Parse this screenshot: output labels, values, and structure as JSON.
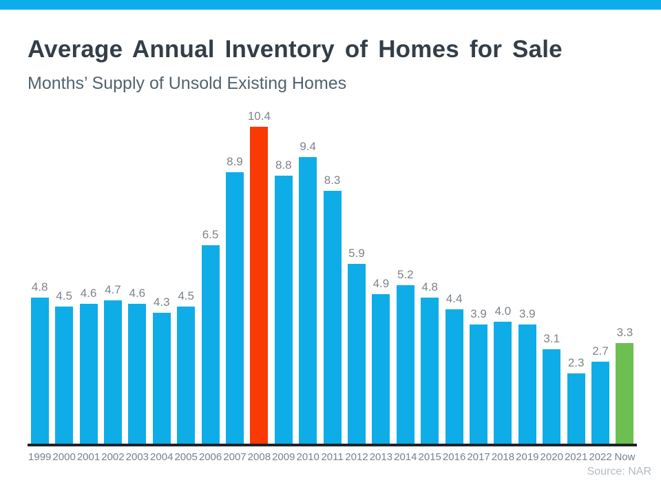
{
  "page": {
    "top_accent_color": "#0fade8"
  },
  "header": {
    "title": "Average Annual Inventory of Homes for Sale",
    "subtitle": "Months’ Supply of Unsold Existing Homes"
  },
  "chart_data": {
    "type": "bar",
    "title": "Average Annual Inventory of Homes for Sale",
    "subtitle": "Months’ Supply of Unsold Existing Homes",
    "xlabel": "",
    "ylabel": "Months' Supply",
    "ylim": [
      0,
      10.4
    ],
    "grid": false,
    "legend": false,
    "categories": [
      "1999",
      "2000",
      "2001",
      "2002",
      "2003",
      "2004",
      "2005",
      "2006",
      "2007",
      "2008",
      "2009",
      "2010",
      "2011",
      "2012",
      "2013",
      "2014",
      "2015",
      "2016",
      "2017",
      "2018",
      "2019",
      "2020",
      "2021",
      "2022",
      "Now"
    ],
    "values": [
      4.8,
      4.5,
      4.6,
      4.7,
      4.6,
      4.3,
      4.5,
      6.5,
      8.9,
      10.4,
      8.8,
      9.4,
      8.3,
      5.9,
      4.9,
      5.2,
      4.8,
      4.4,
      3.9,
      4.0,
      3.9,
      3.1,
      2.3,
      2.7,
      3.3
    ],
    "labels": [
      "4.8",
      "4.5",
      "4.6",
      "4.7",
      "4.6",
      "4.3",
      "4.5",
      "6.5",
      "8.9",
      "10.4",
      "8.8",
      "9.4",
      "8.3",
      "5.9",
      "4.9",
      "5.2",
      "4.8",
      "4.4",
      "3.9",
      "4.0",
      "3.9",
      "3.1",
      "2.3",
      "2.7",
      "3.3"
    ],
    "colors": [
      "blue",
      "blue",
      "blue",
      "blue",
      "blue",
      "blue",
      "blue",
      "blue",
      "blue",
      "red",
      "blue",
      "blue",
      "blue",
      "blue",
      "blue",
      "blue",
      "blue",
      "blue",
      "blue",
      "blue",
      "blue",
      "blue",
      "blue",
      "blue",
      "green"
    ],
    "palette": {
      "blue": "#0fade8",
      "red": "#fa3a05",
      "green": "#6ebf52"
    },
    "value_label_color": "#7c838a",
    "tick_label_color": "#76828e",
    "axis_color": "#1e2328"
  },
  "footer": {
    "source_label": "Source: NAR"
  }
}
